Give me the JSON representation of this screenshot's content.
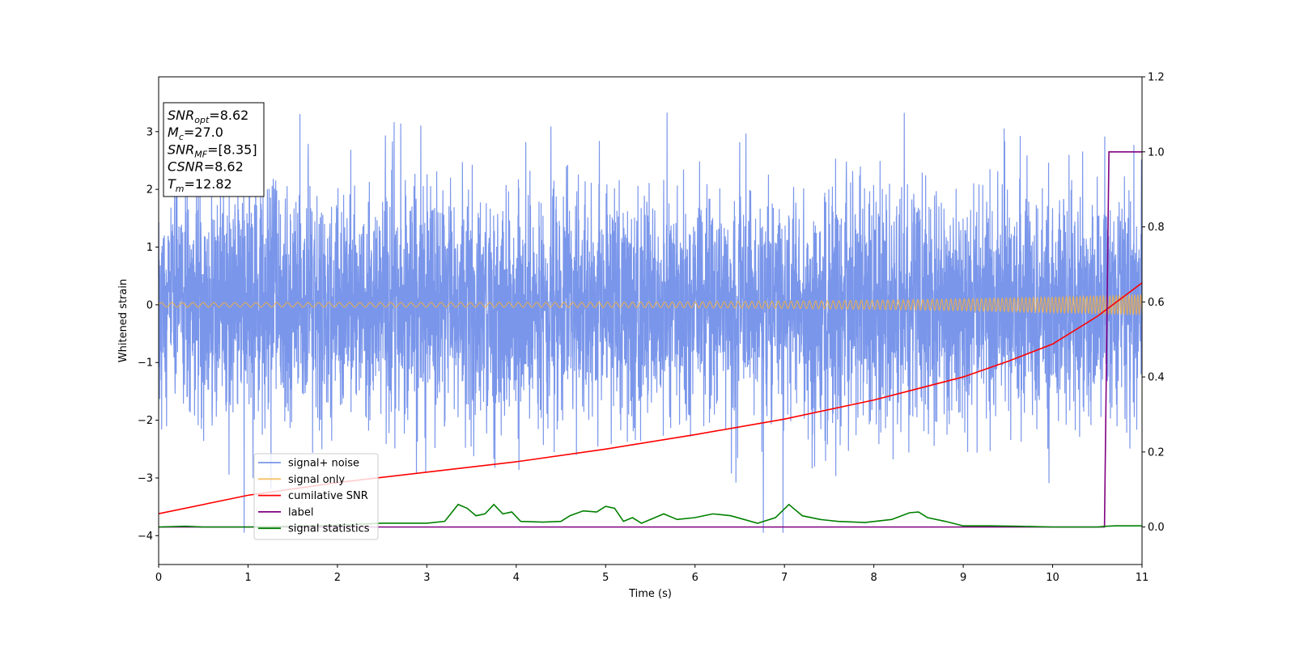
{
  "chart_data": {
    "type": "line",
    "xlabel": "Time (s)",
    "ylabel": "Whitened strain",
    "xlim": [
      0,
      11
    ],
    "ylim": [
      -4.5,
      3.95
    ],
    "y2lim": [
      -0.1,
      1.2
    ],
    "xticks": [
      0,
      1,
      2,
      3,
      4,
      5,
      6,
      7,
      8,
      9,
      10,
      11
    ],
    "yticks": [
      -4,
      -3,
      -2,
      -1,
      0,
      1,
      2,
      3
    ],
    "y2ticks": [
      0.0,
      0.2,
      0.4,
      0.6,
      0.8,
      1.0,
      1.2
    ],
    "legend_position": "lower-left",
    "info_box": {
      "lines": [
        {
          "base": "SNR",
          "sub": "opt",
          "value": "=8.62"
        },
        {
          "base": "M",
          "sub": "c",
          "value": "=27.0"
        },
        {
          "base": "SNR",
          "sub": "MF",
          "value": "=[8.35]"
        },
        {
          "base": "CSNR",
          "sub": "",
          "value": "=8.62"
        },
        {
          "base": "T",
          "sub": "m",
          "value": "=12.82"
        }
      ]
    },
    "series": [
      {
        "name": "signal+ noise",
        "axis": "left",
        "color": "#4169e1",
        "noise_std": 1.0,
        "y_range_observed": [
          -3.95,
          3.6
        ],
        "x_start": 0,
        "x_end": 11
      },
      {
        "name": "signal only",
        "axis": "left",
        "color": "#f5b041",
        "chirp": {
          "f_start": 8.5,
          "f_end": 30,
          "amp_start": 0.04,
          "amp_end": 0.18
        },
        "x_start": 0,
        "x_end": 11
      },
      {
        "name": "cumilative SNR",
        "axis": "left",
        "color": "#ff0000",
        "x": [
          0,
          1,
          2,
          3,
          4,
          5,
          6,
          7,
          8,
          9,
          9.5,
          10,
          10.5,
          11
        ],
        "y": [
          -3.62,
          -3.3,
          -3.08,
          -2.9,
          -2.72,
          -2.5,
          -2.25,
          -1.98,
          -1.65,
          -1.25,
          -0.98,
          -0.68,
          -0.2,
          0.38
        ]
      },
      {
        "name": "label",
        "axis": "right",
        "color": "#800080",
        "x": [
          0,
          10.58,
          10.63,
          11
        ],
        "y": [
          0,
          0,
          1,
          1
        ]
      },
      {
        "name": "signal statistics",
        "axis": "right",
        "color": "#008000",
        "x": [
          0,
          0.3,
          0.5,
          1,
          1.5,
          2,
          2.5,
          3,
          3.2,
          3.35,
          3.45,
          3.55,
          3.65,
          3.75,
          3.85,
          3.95,
          4.05,
          4.3,
          4.5,
          4.6,
          4.75,
          4.9,
          5.0,
          5.1,
          5.2,
          5.3,
          5.4,
          5.5,
          5.65,
          5.8,
          6.0,
          6.2,
          6.4,
          6.7,
          6.9,
          7.05,
          7.2,
          7.4,
          7.6,
          7.9,
          8.2,
          8.4,
          8.5,
          8.6,
          8.8,
          9.0,
          9.3,
          9.6,
          10.0,
          10.5,
          10.6,
          10.7,
          11
        ],
        "y": [
          0,
          0.002,
          0.0,
          0.0,
          0.002,
          0.005,
          0.01,
          0.01,
          0.015,
          0.06,
          0.05,
          0.03,
          0.035,
          0.06,
          0.035,
          0.04,
          0.015,
          0.013,
          0.015,
          0.03,
          0.043,
          0.04,
          0.055,
          0.05,
          0.015,
          0.025,
          0.01,
          0.02,
          0.035,
          0.02,
          0.025,
          0.035,
          0.03,
          0.01,
          0.025,
          0.06,
          0.03,
          0.02,
          0.015,
          0.012,
          0.02,
          0.038,
          0.04,
          0.025,
          0.015,
          0.003,
          0.003,
          0.002,
          0.0,
          0.0,
          0.002,
          0.003,
          0.003
        ]
      }
    ]
  }
}
